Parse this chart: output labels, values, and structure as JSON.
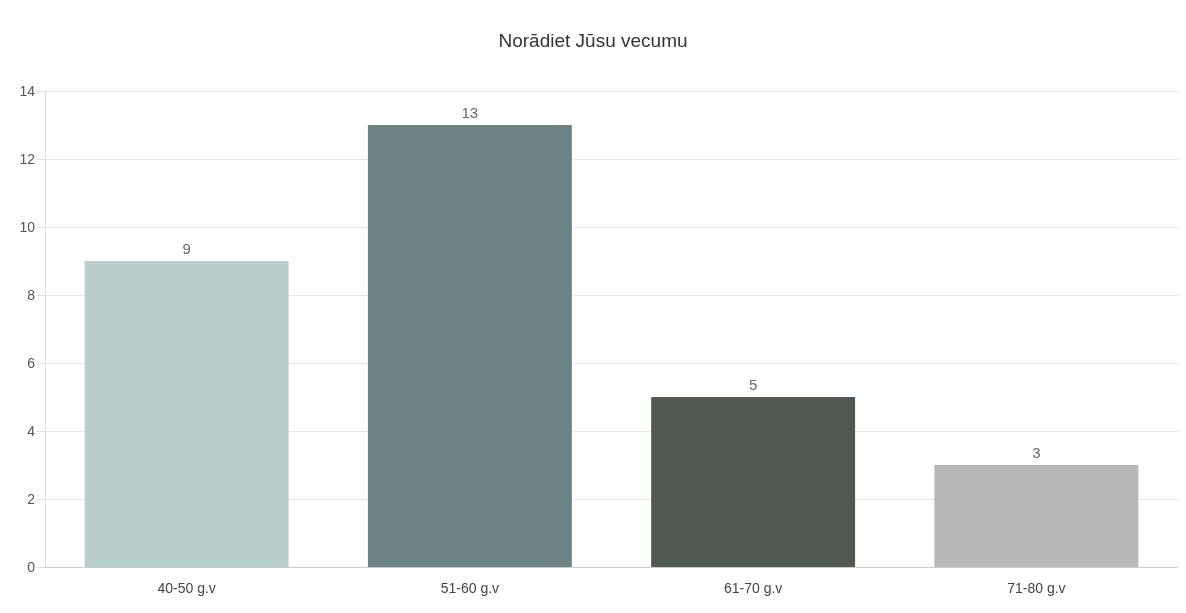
{
  "chart_data": {
    "type": "bar",
    "title": "Norādiet Jūsu vecumu",
    "categories": [
      "40-50 g.v",
      "51-60 g.v",
      "61-70 g.v",
      "71-80 g.v"
    ],
    "values": [
      9,
      13,
      5,
      3
    ],
    "colors": [
      "#b8ceca",
      "#6b8483",
      "#515a52",
      "#b8b8b9"
    ],
    "ylim": [
      0,
      14
    ],
    "yticks": [
      0,
      2,
      4,
      6,
      8,
      10,
      12,
      14
    ],
    "grid": "y",
    "data_labels": true
  }
}
